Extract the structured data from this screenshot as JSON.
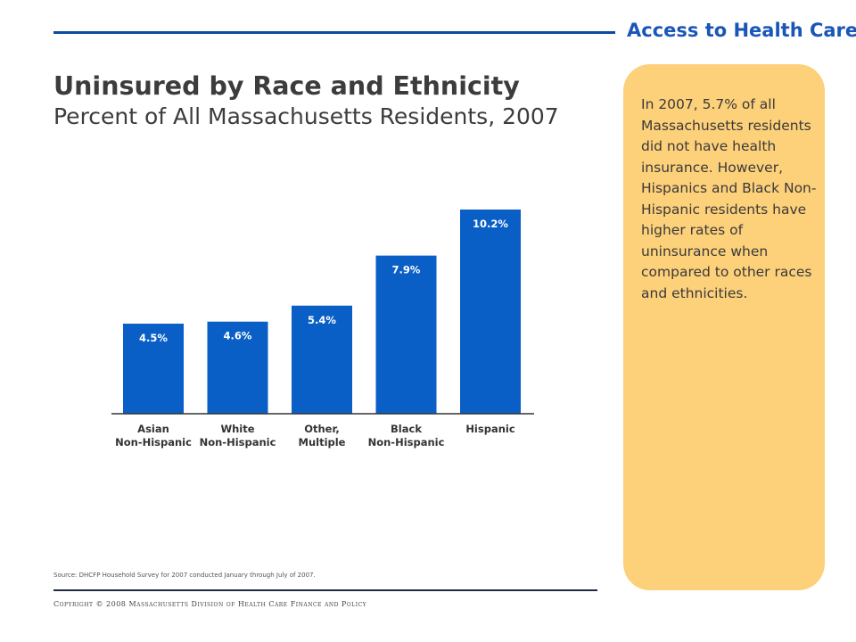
{
  "header": {
    "section_label": "Access to Health Care"
  },
  "title": "Uninsured by Race and Ethnicity",
  "subtitle": "Percent of All Massachusetts Residents, 2007",
  "sidebar": {
    "text": "In 2007, 5.7% of all Massachusetts residents did not have health insurance. However, Hispanics and Black Non-Hispanic residents have higher rates of uninsurance when compared to other races and ethnicities."
  },
  "footer": {
    "source": "Source: DHCFP Household Survey for 2007 conducted January through July of 2007.",
    "copyright": "Copyright © 2008 Massachusetts Division of Health Care Finance and Policy"
  },
  "colors": {
    "bar": "#0a5fc6",
    "sidebar": "#fdd07a",
    "accent": "#1a56b8"
  },
  "chart_data": {
    "type": "bar",
    "title": "Uninsured by Race and Ethnicity",
    "subtitle": "Percent of All Massachusetts Residents, 2007",
    "categories": [
      [
        "Asian",
        "Non-Hispanic"
      ],
      [
        "White",
        "Non-Hispanic"
      ],
      [
        "Other,",
        "Multiple"
      ],
      [
        "Black",
        "Non-Hispanic"
      ],
      [
        "Hispanic"
      ]
    ],
    "values": [
      4.5,
      4.6,
      5.4,
      7.9,
      10.2
    ],
    "value_labels": [
      "4.5%",
      "4.6%",
      "5.4%",
      "7.9%",
      "10.2%"
    ],
    "ylim": [
      0,
      10.2
    ],
    "xlabel": "",
    "ylabel": "",
    "grid": false,
    "legend": "none"
  }
}
